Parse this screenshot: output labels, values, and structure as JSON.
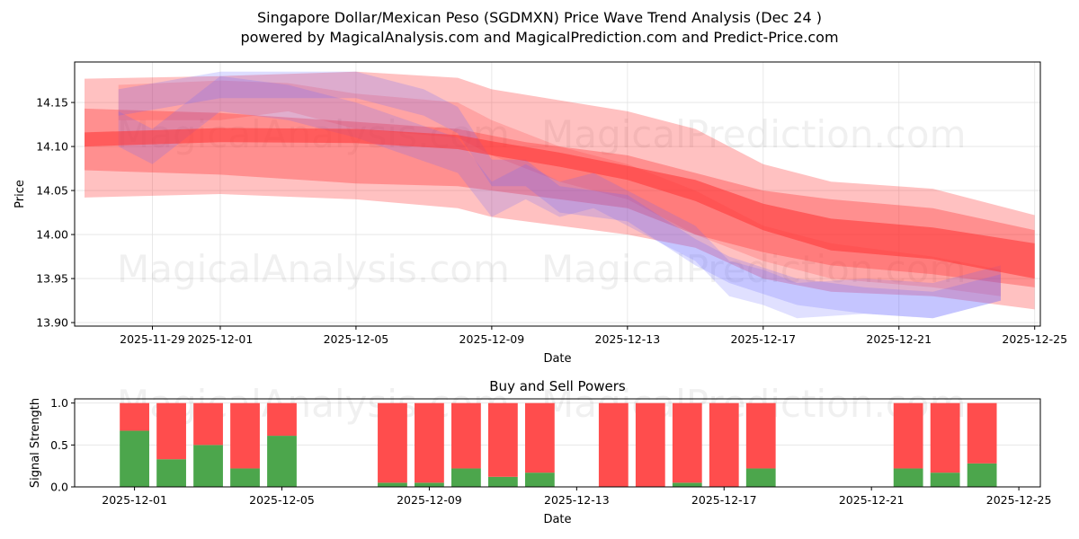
{
  "title_line1": "Singapore Dollar/Mexican Peso (SGDMXN) Price Wave Trend Analysis (Dec 24 )",
  "title_line2": "powered by MagicalAnalysis.com and MagicalPrediction.com and Predict-Price.com",
  "watermarks": [
    "MagicalAnalysis.com",
    "MagicalPrediction.com"
  ],
  "colors": {
    "red": "#ff3333",
    "blue": "#6666ff",
    "buy": "#4ca64c",
    "sell": "#ff4d4d"
  },
  "chart_data": [
    {
      "type": "area",
      "title": "",
      "xlabel": "Date",
      "ylabel": "Price",
      "xlim": [
        "2025-11-26T17:00",
        "2025-12-25T04:00"
      ],
      "ylim": [
        13.896,
        14.196
      ],
      "grid": true,
      "xticks": [
        "2025-11-29",
        "2025-12-01",
        "2025-12-05",
        "2025-12-09",
        "2025-12-13",
        "2025-12-17",
        "2025-12-21",
        "2025-12-25"
      ],
      "yticks": [
        "13.90",
        "13.95",
        "14.00",
        "14.05",
        "14.10",
        "14.15"
      ],
      "bands": [
        {
          "name": "red-outer",
          "color": "red",
          "opacity": 0.3,
          "x": [
            "2025-11-27",
            "2025-12-01",
            "2025-12-05",
            "2025-12-08",
            "2025-12-09",
            "2025-12-13",
            "2025-12-15",
            "2025-12-17",
            "2025-12-19",
            "2025-12-22",
            "2025-12-25"
          ],
          "upper": [
            14.177,
            14.18,
            14.185,
            14.178,
            14.165,
            14.14,
            14.12,
            14.08,
            14.06,
            14.052,
            14.022
          ],
          "lower": [
            14.042,
            14.046,
            14.04,
            14.03,
            14.02,
            14.0,
            13.985,
            13.95,
            13.935,
            13.93,
            13.915
          ]
        },
        {
          "name": "red-mid",
          "color": "red",
          "opacity": 0.35,
          "x": [
            "2025-11-27",
            "2025-12-01",
            "2025-12-05",
            "2025-12-08",
            "2025-12-10",
            "2025-12-13",
            "2025-12-15",
            "2025-12-17",
            "2025-12-19",
            "2025-12-22",
            "2025-12-25"
          ],
          "upper": [
            14.143,
            14.138,
            14.128,
            14.12,
            14.105,
            14.09,
            14.07,
            14.05,
            14.04,
            14.03,
            14.005
          ],
          "lower": [
            14.073,
            14.068,
            14.058,
            14.055,
            14.045,
            14.03,
            14.0,
            13.98,
            13.965,
            13.955,
            13.94
          ]
        },
        {
          "name": "red-upper-wave",
          "color": "red",
          "opacity": 0.2,
          "x": [
            "2025-11-28",
            "2025-12-01",
            "2025-12-03",
            "2025-12-05",
            "2025-12-08",
            "2025-12-09",
            "2025-12-11",
            "2025-12-13",
            "2025-12-15",
            "2025-12-17",
            "2025-12-19",
            "2025-12-22",
            "2025-12-24"
          ],
          "upper": [
            14.17,
            14.175,
            14.172,
            14.16,
            14.15,
            14.13,
            14.1,
            14.08,
            14.05,
            14.01,
            13.99,
            13.975,
            13.96
          ],
          "lower": [
            14.13,
            14.13,
            14.14,
            14.12,
            14.11,
            14.09,
            14.06,
            14.04,
            14.0,
            13.97,
            13.95,
            13.94,
            13.93
          ]
        },
        {
          "name": "blue-wave-1",
          "color": "blue",
          "opacity": 0.2,
          "x": [
            "2025-11-28",
            "2025-11-29",
            "2025-12-01",
            "2025-12-03",
            "2025-12-05",
            "2025-12-08",
            "2025-12-09",
            "2025-12-10",
            "2025-12-11",
            "2025-12-12",
            "2025-12-13",
            "2025-12-15",
            "2025-12-16",
            "2025-12-17",
            "2025-12-18",
            "2025-12-20",
            "2025-12-22",
            "2025-12-24"
          ],
          "upper": [
            14.14,
            14.12,
            14.18,
            14.17,
            14.15,
            14.11,
            14.06,
            14.08,
            14.06,
            14.07,
            14.05,
            14.01,
            13.97,
            13.96,
            13.945,
            13.95,
            13.945,
            13.965
          ],
          "lower": [
            14.1,
            14.08,
            14.14,
            14.13,
            14.11,
            14.07,
            14.02,
            14.04,
            14.02,
            14.03,
            14.01,
            13.97,
            13.93,
            13.92,
            13.905,
            13.91,
            13.905,
            13.925
          ]
        },
        {
          "name": "blue-wave-2",
          "color": "blue",
          "opacity": 0.22,
          "x": [
            "2025-11-28",
            "2025-12-01",
            "2025-12-03",
            "2025-12-05",
            "2025-12-07",
            "2025-12-08",
            "2025-12-09",
            "2025-12-10",
            "2025-12-11",
            "2025-12-13",
            "2025-12-15",
            "2025-12-16",
            "2025-12-18",
            "2025-12-20",
            "2025-12-22",
            "2025-12-24"
          ],
          "upper": [
            14.165,
            14.185,
            14.185,
            14.185,
            14.165,
            14.145,
            14.085,
            14.085,
            14.055,
            14.045,
            13.995,
            13.975,
            13.95,
            13.94,
            13.935,
            13.955
          ],
          "lower": [
            14.135,
            14.155,
            14.155,
            14.155,
            14.135,
            14.115,
            14.055,
            14.055,
            14.025,
            14.015,
            13.965,
            13.945,
            13.92,
            13.91,
            13.905,
            13.925
          ]
        },
        {
          "name": "red-core",
          "color": "red",
          "opacity": 0.55,
          "x": [
            "2025-11-27",
            "2025-12-01",
            "2025-12-05",
            "2025-12-08",
            "2025-12-09",
            "2025-12-11",
            "2025-12-13",
            "2025-12-15",
            "2025-12-17",
            "2025-12-19",
            "2025-12-22",
            "2025-12-25"
          ],
          "upper": [
            14.116,
            14.121,
            14.12,
            14.113,
            14.106,
            14.093,
            14.078,
            14.062,
            14.035,
            14.018,
            14.008,
            13.99
          ],
          "lower": [
            14.1,
            14.105,
            14.104,
            14.097,
            14.09,
            14.077,
            14.062,
            14.038,
            14.005,
            13.982,
            13.972,
            13.95
          ]
        }
      ]
    },
    {
      "type": "bar",
      "title": "Buy and Sell Powers",
      "xlabel": "Date",
      "ylabel": "Signal Strength",
      "xlim": [
        "2025-11-29T09:00",
        "2025-12-25T14:00"
      ],
      "ylim": [
        0,
        1.05
      ],
      "xticks": [
        "2025-12-01",
        "2025-12-05",
        "2025-12-09",
        "2025-12-13",
        "2025-12-17",
        "2025-12-21",
        "2025-12-25"
      ],
      "yticks": [
        "0.0",
        "0.5",
        "1.0"
      ],
      "categories": [
        "2025-12-01",
        "2025-12-02",
        "2025-12-03",
        "2025-12-04",
        "2025-12-05",
        "2025-12-08",
        "2025-12-09",
        "2025-12-10",
        "2025-12-11",
        "2025-12-12",
        "2025-12-14",
        "2025-12-15",
        "2025-12-16",
        "2025-12-17",
        "2025-12-18",
        "2025-12-22",
        "2025-12-23",
        "2025-12-24"
      ],
      "series": [
        {
          "name": "Buy",
          "color": "buy",
          "values": [
            0.67,
            0.33,
            0.5,
            0.22,
            0.61,
            0.05,
            0.05,
            0.22,
            0.12,
            0.17,
            0.0,
            0.0,
            0.05,
            0.0,
            0.22,
            0.22,
            0.17,
            0.28
          ]
        },
        {
          "name": "Sell",
          "color": "sell",
          "values": [
            0.33,
            0.67,
            0.5,
            0.78,
            0.39,
            0.95,
            0.95,
            0.78,
            0.88,
            0.83,
            1.0,
            1.0,
            0.95,
            1.0,
            0.78,
            0.78,
            0.83,
            0.72
          ]
        }
      ]
    }
  ]
}
